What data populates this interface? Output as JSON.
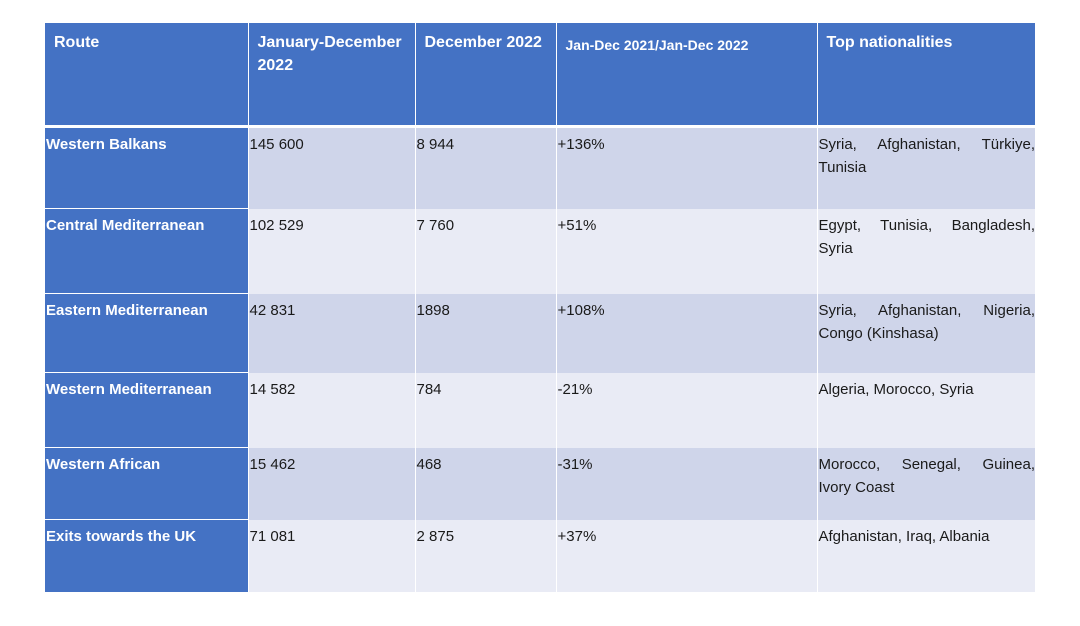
{
  "headers": {
    "route": "Route",
    "jan_dec": "January-December 2022",
    "december": "December 2022",
    "change": "Jan-Dec 2021/Jan-Dec 2022",
    "nationalities": "Top nationalities"
  },
  "rows": [
    {
      "route": "Western Balkans",
      "jan_dec": "145 600",
      "december": "8 944",
      "change": "+136%",
      "nationalities": "Syria, Afghanistan, Türkiye, Tunisia"
    },
    {
      "route": "Central Mediterranean",
      "jan_dec": "102 529",
      "december": "7 760",
      "change": "+51%",
      "nationalities": "Egypt, Tunisia, Bangladesh, Syria"
    },
    {
      "route": "Eastern Mediterranean",
      "jan_dec": "42 831",
      "december": "1898",
      "change": "+108%",
      "nationalities": "Syria, Afghanistan, Nigeria, Congo (Kinshasa)"
    },
    {
      "route": "Western Mediterranean",
      "jan_dec": "14 582",
      "december": "784",
      "change": "-21%",
      "nationalities": "Algeria, Morocco, Syria"
    },
    {
      "route": "Western African",
      "jan_dec": "15 462",
      "december": "468",
      "change": "-31%",
      "nationalities": "Morocco, Senegal, Guinea, Ivory Coast"
    },
    {
      "route": "Exits towards the UK",
      "jan_dec": "71 081",
      "december": "2 875",
      "change": "+37%",
      "nationalities": "Afghanistan, Iraq, Albania"
    }
  ],
  "colors": {
    "header_bg": "#4472c4",
    "row_band_dark": "#cfd5ea",
    "row_band_light": "#e9ebf5"
  }
}
